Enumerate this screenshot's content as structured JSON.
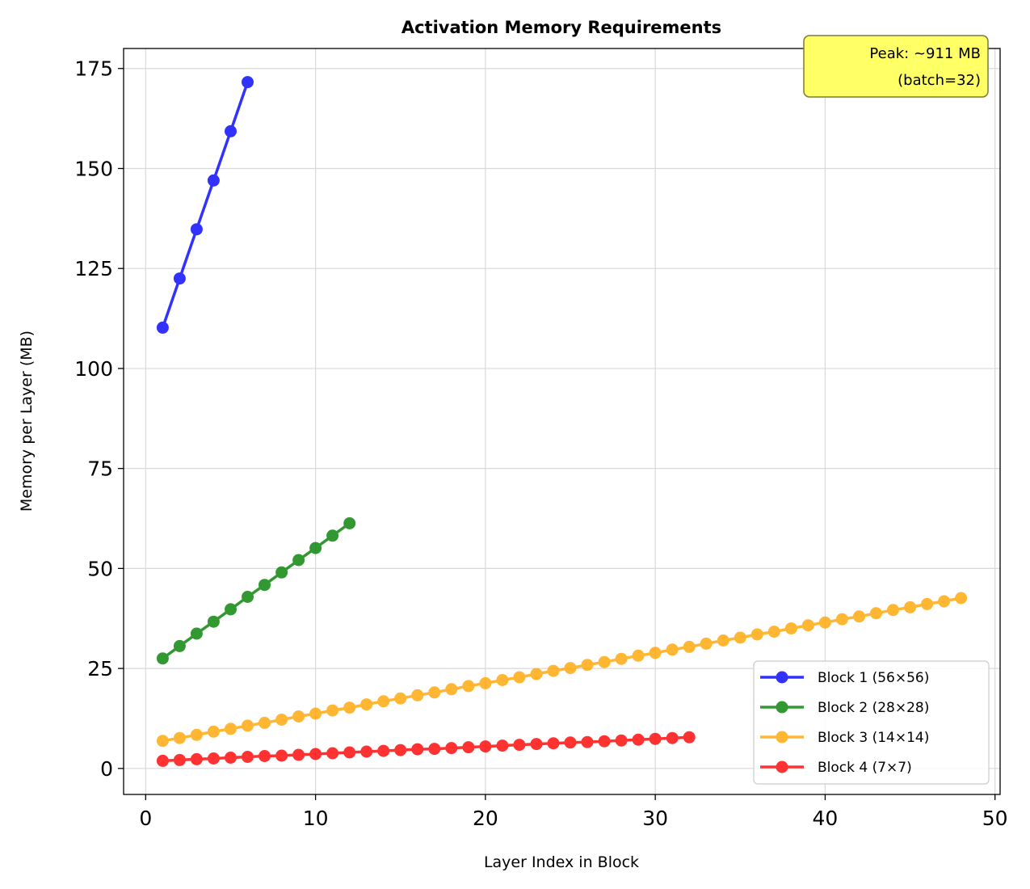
{
  "chart_data": {
    "type": "line",
    "title": "Activation Memory Requirements",
    "xlabel": "Layer Index in Block",
    "ylabel": "Memory per Layer (MB)",
    "xlim": [
      -1.3,
      50.3
    ],
    "ylim": [
      -6.5,
      180
    ],
    "xticks": [
      0,
      10,
      20,
      30,
      40,
      50
    ],
    "yticks": [
      0,
      25,
      50,
      75,
      100,
      125,
      150,
      175
    ],
    "grid": true,
    "legend_position": "lower-right",
    "annotation": {
      "line1": "Peak: ~911 MB",
      "line2": "(batch=32)"
    },
    "series": [
      {
        "name": "Block 1 (56×56)",
        "color": "#0000ff",
        "x_start": 1,
        "values": [
          110.2,
          122.5,
          134.8,
          147.0,
          159.3,
          171.6
        ]
      },
      {
        "name": "Block 2 (28×28)",
        "color": "#008000",
        "x_start": 1,
        "values": [
          27.5,
          30.6,
          33.7,
          36.7,
          39.8,
          42.9,
          45.9,
          49.0,
          52.1,
          55.1,
          58.2,
          61.3
        ]
      },
      {
        "name": "Block 3 (14×14)",
        "color": "#ffa500",
        "x_start": 1,
        "values": [
          6.9,
          7.6,
          8.4,
          9.2,
          9.9,
          10.7,
          11.4,
          12.2,
          13.0,
          13.7,
          14.5,
          15.2,
          16.0,
          16.8,
          17.5,
          18.3,
          19.0,
          19.8,
          20.6,
          21.3,
          22.1,
          22.8,
          23.6,
          24.4,
          25.1,
          25.9,
          26.6,
          27.4,
          28.2,
          28.9,
          29.7,
          30.4,
          31.2,
          32.0,
          32.7,
          33.5,
          34.2,
          35.0,
          35.8,
          36.5,
          37.3,
          38.0,
          38.8,
          39.6,
          40.3,
          41.1,
          41.8,
          42.6
        ]
      },
      {
        "name": "Block 4 (7×7)",
        "color": "#ff0000",
        "x_start": 1,
        "values": [
          1.9,
          2.1,
          2.3,
          2.5,
          2.7,
          2.9,
          3.1,
          3.2,
          3.4,
          3.6,
          3.8,
          4.0,
          4.2,
          4.4,
          4.6,
          4.8,
          4.9,
          5.1,
          5.3,
          5.5,
          5.7,
          5.9,
          6.1,
          6.3,
          6.5,
          6.6,
          6.8,
          7.0,
          7.2,
          7.4,
          7.6,
          7.8
        ]
      }
    ]
  }
}
